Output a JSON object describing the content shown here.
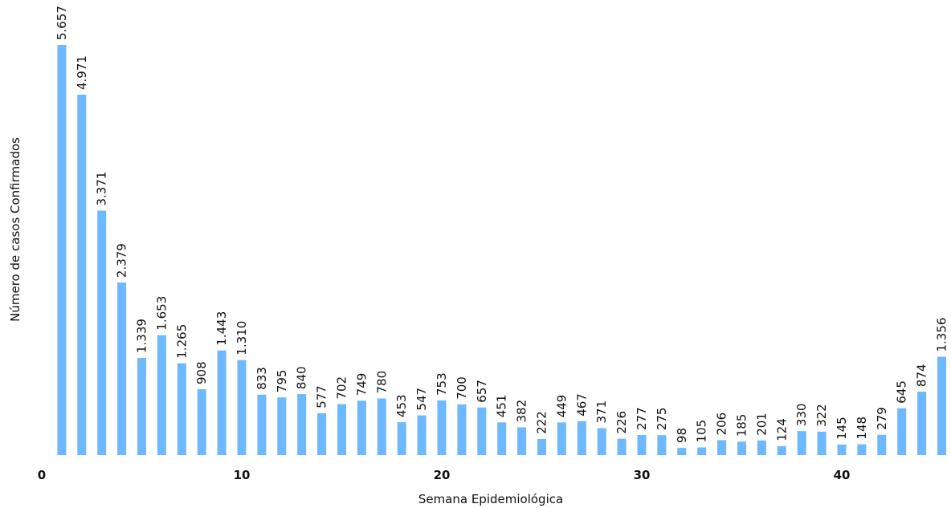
{
  "chart_data": {
    "type": "bar",
    "title": "",
    "xlabel": "Semana Epidemiológica",
    "ylabel": "Número de casos Confirmados",
    "x": [
      1,
      2,
      3,
      4,
      5,
      6,
      7,
      8,
      9,
      10,
      11,
      12,
      13,
      14,
      15,
      16,
      17,
      18,
      19,
      20,
      21,
      22,
      23,
      24,
      25,
      26,
      27,
      28,
      29,
      30,
      31,
      32,
      33,
      34,
      35,
      36,
      37,
      38,
      39,
      40,
      41,
      42,
      43,
      44,
      45
    ],
    "values": [
      5657,
      4971,
      3371,
      2379,
      1339,
      1653,
      1265,
      908,
      1443,
      1310,
      833,
      795,
      840,
      577,
      702,
      749,
      780,
      453,
      547,
      753,
      700,
      657,
      451,
      382,
      222,
      449,
      467,
      371,
      226,
      277,
      275,
      98,
      105,
      206,
      185,
      201,
      124,
      330,
      322,
      145,
      148,
      279,
      645,
      874,
      1356
    ],
    "labels": [
      "5.657",
      "4.971",
      "3.371",
      "2.379",
      "1.339",
      "1.653",
      "1.265",
      "908",
      "1.443",
      "1.310",
      "833",
      "795",
      "840",
      "577",
      "702",
      "749",
      "780",
      "453",
      "547",
      "753",
      "700",
      "657",
      "451",
      "382",
      "222",
      "449",
      "467",
      "371",
      "226",
      "277",
      "275",
      "98",
      "105",
      "206",
      "185",
      "201",
      "124",
      "330",
      "322",
      "145",
      "148",
      "279",
      "645",
      "874",
      "1.356"
    ],
    "x_ticks": [
      "0",
      "10",
      "20",
      "30",
      "40"
    ],
    "xlim": [
      0,
      45.6
    ],
    "ylim": [
      0,
      5657
    ],
    "color": "#6db8ff",
    "grid": false,
    "legend": "none"
  }
}
